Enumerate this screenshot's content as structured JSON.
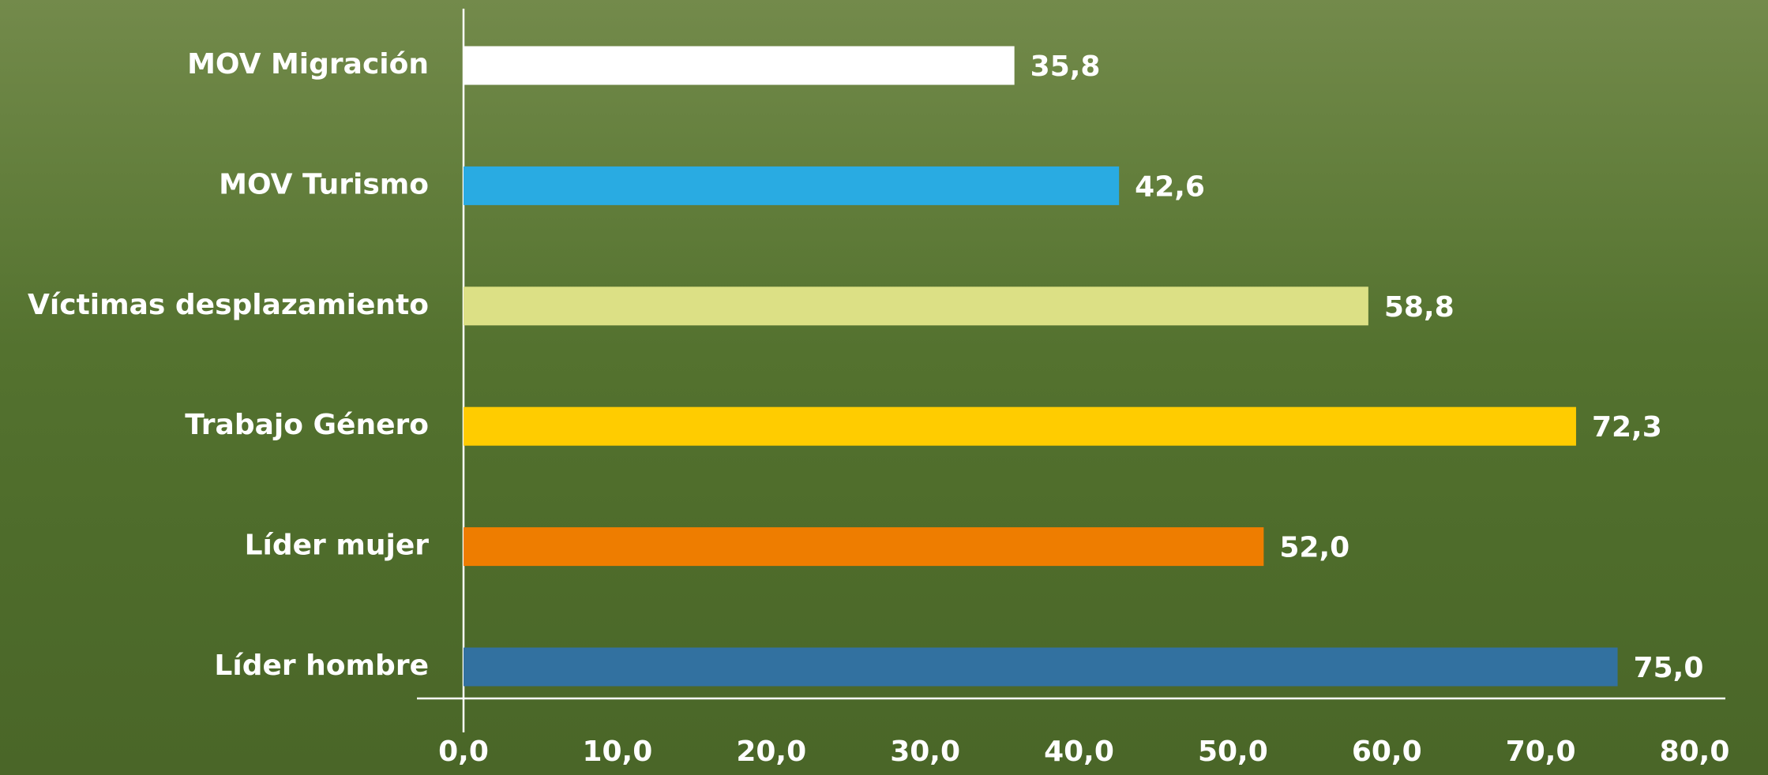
{
  "chart_data": {
    "type": "bar",
    "orientation": "horizontal",
    "categories": [
      "MOV Migración",
      "MOV Turismo",
      "Víctimas desplazamiento",
      "Trabajo Género",
      "Líder mujer",
      "Líder hombre"
    ],
    "values": [
      35.8,
      42.6,
      58.8,
      72.3,
      52.0,
      75.0
    ],
    "value_labels": [
      "35,8",
      "42,6",
      "58,8",
      "72,3",
      "52,0",
      "75,0"
    ],
    "colors": [
      "#ffffff",
      "#29abe2",
      "#dce085",
      "#ffcc00",
      "#ee7d00",
      "#3271a0"
    ],
    "xlim": [
      0,
      80
    ],
    "xticks": [
      {
        "value": 0,
        "label": "0,0"
      },
      {
        "value": 10,
        "label": "10,0"
      },
      {
        "value": 20,
        "label": "20,0"
      },
      {
        "value": 30,
        "label": "30,0"
      },
      {
        "value": 40,
        "label": "40,0"
      },
      {
        "value": 50,
        "label": "50,0"
      },
      {
        "value": 60,
        "label": "60,0"
      },
      {
        "value": 70,
        "label": "70,0"
      },
      {
        "value": 80,
        "label": "80,0"
      }
    ],
    "grid": false
  }
}
